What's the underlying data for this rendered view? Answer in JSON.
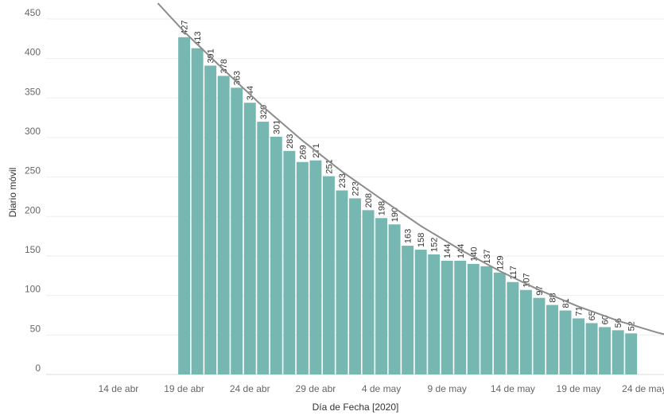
{
  "chart_data": {
    "type": "bar",
    "xlabel": "Día de Fecha [2020]",
    "ylabel": "Diario móvil",
    "ylim": [
      0,
      460
    ],
    "y_ticks": [
      0,
      50,
      100,
      150,
      200,
      250,
      300,
      350,
      400,
      450
    ],
    "x_ticks": [
      {
        "label": "14 de abr",
        "date": "2020-04-14"
      },
      {
        "label": "19 de abr",
        "date": "2020-04-19"
      },
      {
        "label": "24 de abr",
        "date": "2020-04-24"
      },
      {
        "label": "29 de abr",
        "date": "2020-04-29"
      },
      {
        "label": "4 de may",
        "date": "2020-05-04"
      },
      {
        "label": "9 de may",
        "date": "2020-05-09"
      },
      {
        "label": "14 de may",
        "date": "2020-05-14"
      },
      {
        "label": "19 de may",
        "date": "2020-05-19"
      },
      {
        "label": "24 de may",
        "date": "2020-05-24"
      }
    ],
    "x_range": [
      "2020-04-09",
      "2020-05-26"
    ],
    "bars": [
      {
        "date": "2020-04-19",
        "value": 427
      },
      {
        "date": "2020-04-20",
        "value": 413
      },
      {
        "date": "2020-04-21",
        "value": 391
      },
      {
        "date": "2020-04-22",
        "value": 378
      },
      {
        "date": "2020-04-23",
        "value": 363
      },
      {
        "date": "2020-04-24",
        "value": 344
      },
      {
        "date": "2020-04-25",
        "value": 320
      },
      {
        "date": "2020-04-26",
        "value": 301
      },
      {
        "date": "2020-04-27",
        "value": 283
      },
      {
        "date": "2020-04-28",
        "value": 269
      },
      {
        "date": "2020-04-29",
        "value": 271
      },
      {
        "date": "2020-04-30",
        "value": 251
      },
      {
        "date": "2020-05-01",
        "value": 233
      },
      {
        "date": "2020-05-02",
        "value": 223
      },
      {
        "date": "2020-05-03",
        "value": 208
      },
      {
        "date": "2020-05-04",
        "value": 198
      },
      {
        "date": "2020-05-05",
        "value": 190
      },
      {
        "date": "2020-05-06",
        "value": 163
      },
      {
        "date": "2020-05-07",
        "value": 158
      },
      {
        "date": "2020-05-08",
        "value": 152
      },
      {
        "date": "2020-05-09",
        "value": 144
      },
      {
        "date": "2020-05-10",
        "value": 144
      },
      {
        "date": "2020-05-11",
        "value": 140
      },
      {
        "date": "2020-05-12",
        "value": 137
      },
      {
        "date": "2020-05-13",
        "value": 129
      },
      {
        "date": "2020-05-14",
        "value": 117
      },
      {
        "date": "2020-05-15",
        "value": 107
      },
      {
        "date": "2020-05-16",
        "value": 97
      },
      {
        "date": "2020-05-17",
        "value": 88
      },
      {
        "date": "2020-05-18",
        "value": 81
      },
      {
        "date": "2020-05-19",
        "value": 71
      },
      {
        "date": "2020-05-20",
        "value": 65
      },
      {
        "date": "2020-05-21",
        "value": 60
      },
      {
        "date": "2020-05-22",
        "value": 56
      },
      {
        "date": "2020-05-23",
        "value": 52
      }
    ],
    "trend_line": [
      {
        "date": "2020-04-17",
        "value": 470
      },
      {
        "date": "2020-04-19",
        "value": 434
      },
      {
        "date": "2020-04-22",
        "value": 386
      },
      {
        "date": "2020-04-25",
        "value": 339
      },
      {
        "date": "2020-04-28",
        "value": 296
      },
      {
        "date": "2020-05-01",
        "value": 257
      },
      {
        "date": "2020-05-04",
        "value": 222
      },
      {
        "date": "2020-05-07",
        "value": 188
      },
      {
        "date": "2020-05-10",
        "value": 158
      },
      {
        "date": "2020-05-13",
        "value": 131
      },
      {
        "date": "2020-05-16",
        "value": 107
      },
      {
        "date": "2020-05-19",
        "value": 86
      },
      {
        "date": "2020-05-22",
        "value": 68
      },
      {
        "date": "2020-05-25",
        "value": 53
      },
      {
        "date": "2020-05-26",
        "value": 49
      }
    ],
    "colors": {
      "bar": "#76b7b2",
      "trend": "#8c8c8c",
      "grid": "#eeeeee",
      "baseline": "#dddddd"
    },
    "grid": true
  }
}
